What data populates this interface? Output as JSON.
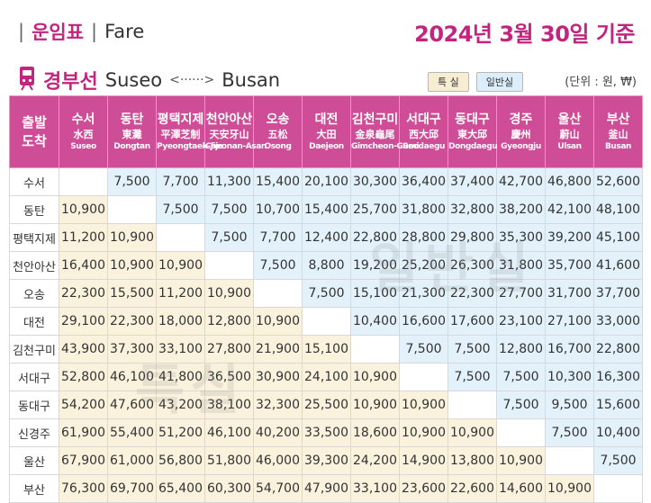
{
  "header": {
    "title_korean": "운임표",
    "title_english": "Fare",
    "date_basis": "2024년 3월 30일 기준"
  },
  "line": {
    "name_korean": "경부선",
    "from": "Suseo",
    "arrow": "<······>",
    "to": "Busan",
    "legend_special": "특 실",
    "legend_standard": "일반실",
    "unit": "(단위 : 원, ₩)"
  },
  "colors": {
    "accent": "#c2247f",
    "header_bg": "#cf4d97",
    "special_bg": "#fbf2dd",
    "standard_bg": "#e3f1fb"
  },
  "table": {
    "corner": [
      "출발",
      "도착"
    ],
    "stations": [
      {
        "kr": "수서",
        "hanja": "水西",
        "en": "Suseo"
      },
      {
        "kr": "동탄",
        "hanja": "東灘",
        "en": "Dongtan"
      },
      {
        "kr": "평택지제",
        "hanja": "平澤芝制",
        "en": "Pyeongtaek-Jije"
      },
      {
        "kr": "천안아산",
        "hanja": "天安牙山",
        "en": "Cheonan-Asan"
      },
      {
        "kr": "오송",
        "hanja": "五松",
        "en": "Osong"
      },
      {
        "kr": "대전",
        "hanja": "大田",
        "en": "Daejeon"
      },
      {
        "kr": "김천구미",
        "hanja": "金泉龜尾",
        "en": "Gimcheon-Gumi"
      },
      {
        "kr": "서대구",
        "hanja": "西大邱",
        "en": "Seodaegu"
      },
      {
        "kr": "동대구",
        "hanja": "東大邱",
        "en": "Dongdaegu"
      },
      {
        "kr": "경주",
        "hanja": "慶州",
        "en": "Gyeongju"
      },
      {
        "kr": "울산",
        "hanja": "蔚山",
        "en": "Ulsan"
      },
      {
        "kr": "부산",
        "hanja": "釜山",
        "en": "Busan"
      }
    ],
    "rows": [
      {
        "label": "수서",
        "cells": [
          "",
          "7,500",
          "7,700",
          "11,300",
          "15,400",
          "20,100",
          "30,300",
          "36,400",
          "37,400",
          "42,700",
          "46,800",
          "52,600"
        ]
      },
      {
        "label": "동탄",
        "cells": [
          "10,900",
          "",
          "7,500",
          "7,500",
          "10,700",
          "15,400",
          "25,700",
          "31,800",
          "32,800",
          "38,200",
          "42,100",
          "48,100"
        ]
      },
      {
        "label": "평택지제",
        "cells": [
          "11,200",
          "10,900",
          "",
          "7,500",
          "7,700",
          "12,400",
          "22,800",
          "28,800",
          "29,800",
          "35,300",
          "39,200",
          "45,100"
        ]
      },
      {
        "label": "천안아산",
        "cells": [
          "16,400",
          "10,900",
          "10,900",
          "",
          "7,500",
          "8,800",
          "19,200",
          "25,200",
          "26,300",
          "31,800",
          "35,700",
          "41,600"
        ]
      },
      {
        "label": "오송",
        "cells": [
          "22,300",
          "15,500",
          "11,200",
          "10,900",
          "",
          "7,500",
          "15,100",
          "21,300",
          "22,300",
          "27,700",
          "31,700",
          "37,700"
        ]
      },
      {
        "label": "대전",
        "cells": [
          "29,100",
          "22,300",
          "18,000",
          "12,800",
          "10,900",
          "",
          "10,400",
          "16,600",
          "17,600",
          "23,100",
          "27,100",
          "33,000"
        ]
      },
      {
        "label": "김천구미",
        "cells": [
          "43,900",
          "37,300",
          "33,100",
          "27,800",
          "21,900",
          "15,100",
          "",
          "7,500",
          "7,500",
          "12,800",
          "16,700",
          "22,800"
        ]
      },
      {
        "label": "서대구",
        "cells": [
          "52,800",
          "46,100",
          "41,800",
          "36,500",
          "30,900",
          "24,100",
          "10,900",
          "",
          "7,500",
          "7,500",
          "10,300",
          "16,300"
        ]
      },
      {
        "label": "동대구",
        "cells": [
          "54,200",
          "47,600",
          "43,200",
          "38,100",
          "32,300",
          "25,500",
          "10,900",
          "10,900",
          "",
          "7,500",
          "9,500",
          "15,600"
        ]
      },
      {
        "label": "신경주",
        "cells": [
          "61,900",
          "55,400",
          "51,200",
          "46,100",
          "40,200",
          "33,500",
          "18,600",
          "10,900",
          "10,900",
          "",
          "7,500",
          "10,400"
        ]
      },
      {
        "label": "울산",
        "cells": [
          "67,900",
          "61,000",
          "56,800",
          "51,800",
          "46,000",
          "39,300",
          "24,200",
          "14,900",
          "13,800",
          "10,900",
          "",
          "7,500"
        ]
      },
      {
        "label": "부산",
        "cells": [
          "76,300",
          "69,700",
          "65,400",
          "60,300",
          "54,700",
          "47,900",
          "33,100",
          "23,600",
          "22,600",
          "14,600",
          "10,900",
          ""
        ]
      }
    ]
  },
  "watermarks": {
    "standard": "일반실",
    "special": "특실"
  }
}
